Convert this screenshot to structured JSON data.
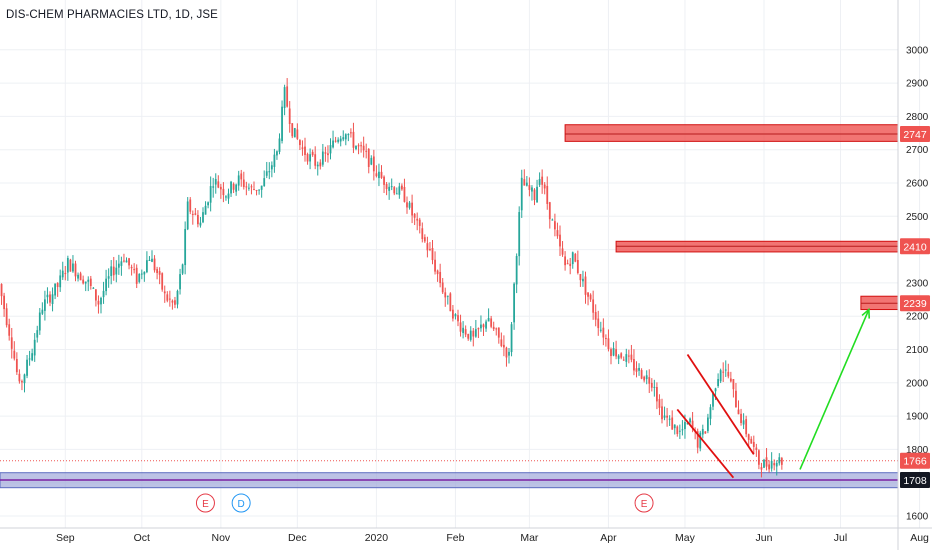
{
  "chart_data": {
    "type": "candlestick",
    "title": "DIS-CHEM PHARMACIES LTD, 1D, JSE",
    "ylim": [
      1580,
      3050
    ],
    "y_ticks": [
      1600,
      1700,
      1800,
      1900,
      2000,
      2100,
      2200,
      2300,
      2400,
      2500,
      2600,
      2700,
      2800,
      2900,
      3000
    ],
    "x_ticks": [
      {
        "label": "Sep",
        "day": 6
      },
      {
        "label": "Oct",
        "day": 36
      },
      {
        "label": "Nov",
        "day": 67
      },
      {
        "label": "Dec",
        "day": 97
      },
      {
        "label": "2020",
        "day": 128
      },
      {
        "label": "Feb",
        "day": 159
      },
      {
        "label": "Mar",
        "day": 188
      },
      {
        "label": "Apr",
        "day": 219
      },
      {
        "label": "May",
        "day": 249
      },
      {
        "label": "Jun",
        "day": 280
      },
      {
        "label": "Jul",
        "day": 310
      },
      {
        "label": "Aug",
        "day": 341
      }
    ],
    "price_path": [
      [
        0,
        2330
      ],
      [
        6,
        2120
      ],
      [
        9,
        1985
      ],
      [
        14,
        2100
      ],
      [
        18,
        2230
      ],
      [
        24,
        2290
      ],
      [
        28,
        2360
      ],
      [
        36,
        2300
      ],
      [
        40,
        2240
      ],
      [
        45,
        2330
      ],
      [
        50,
        2380
      ],
      [
        55,
        2310
      ],
      [
        60,
        2380
      ],
      [
        63,
        2330
      ],
      [
        66,
        2260
      ],
      [
        70,
        2230
      ],
      [
        73,
        2360
      ],
      [
        75,
        2530
      ],
      [
        80,
        2480
      ],
      [
        85,
        2610
      ],
      [
        90,
        2570
      ],
      [
        95,
        2610
      ],
      [
        100,
        2580
      ],
      [
        104,
        2590
      ],
      [
        110,
        2690
      ],
      [
        113,
        2870
      ],
      [
        116,
        2760
      ],
      [
        120,
        2700
      ],
      [
        125,
        2660
      ],
      [
        129,
        2680
      ],
      [
        134,
        2740
      ],
      [
        137,
        2760
      ],
      [
        140,
        2720
      ],
      [
        145,
        2680
      ],
      [
        150,
        2620
      ],
      [
        155,
        2590
      ],
      [
        160,
        2560
      ],
      [
        165,
        2470
      ],
      [
        170,
        2390
      ],
      [
        176,
        2260
      ],
      [
        181,
        2180
      ],
      [
        187,
        2130
      ],
      [
        192,
        2190
      ],
      [
        198,
        2120
      ],
      [
        201,
        2080
      ],
      [
        204,
        2400
      ],
      [
        206,
        2600
      ],
      [
        211,
        2560
      ],
      [
        213,
        2630
      ],
      [
        216,
        2540
      ],
      [
        219,
        2450
      ],
      [
        223,
        2350
      ],
      [
        226,
        2380
      ],
      [
        231,
        2280
      ],
      [
        236,
        2180
      ],
      [
        241,
        2100
      ],
      [
        246,
        2080
      ],
      [
        251,
        2040
      ],
      [
        256,
        2010
      ],
      [
        258,
        2000
      ],
      [
        260,
        1920
      ],
      [
        264,
        1880
      ],
      [
        268,
        1850
      ],
      [
        272,
        1880
      ],
      [
        275,
        1820
      ],
      [
        278,
        1860
      ],
      [
        282,
        2000
      ],
      [
        284,
        2050
      ],
      [
        287,
        2020
      ],
      [
        290,
        1940
      ],
      [
        293,
        1870
      ],
      [
        296,
        1820
      ],
      [
        299,
        1760
      ],
      [
        302,
        1755
      ],
      [
        305,
        1770
      ],
      [
        308,
        1766
      ]
    ],
    "candle_count": 308,
    "last_price": 1766,
    "events": [
      {
        "label": "E",
        "day": 79,
        "color": "#e53945"
      },
      {
        "label": "D",
        "day": 93,
        "color": "#2196f3"
      },
      {
        "label": "E",
        "day": 251,
        "color": "#e53945"
      }
    ],
    "resistance_zones": [
      {
        "price": 2747,
        "low": 2725,
        "high": 2775,
        "from_day": 202
      },
      {
        "price": 2410,
        "low": 2393,
        "high": 2425,
        "from_day": 222
      },
      {
        "price": 2239,
        "low": 2220,
        "high": 2260,
        "from_day": 318
      }
    ],
    "support_zone": {
      "price": 1708,
      "low": 1685,
      "high": 1730
    },
    "channel": {
      "upper": [
        [
          270,
          2085
        ],
        [
          296,
          1785
        ]
      ],
      "lower": [
        [
          266,
          1920
        ],
        [
          288,
          1715
        ]
      ]
    },
    "projection_arrow": {
      "from": [
        300,
        1740
      ],
      "to": [
        327,
        2220
      ]
    },
    "colors": {
      "up": "#26a69a",
      "down": "#ef5350",
      "zone_fill": "#ef5350",
      "zone_stroke": "#d11010",
      "support_fill": "#9fa8da",
      "support_line": "#7b1fa2",
      "channel": "#e01010",
      "arrow": "#22dd22",
      "grid": "#eef0f4",
      "axis_text": "#222222",
      "price_label_bg": "#ef5350"
    }
  }
}
